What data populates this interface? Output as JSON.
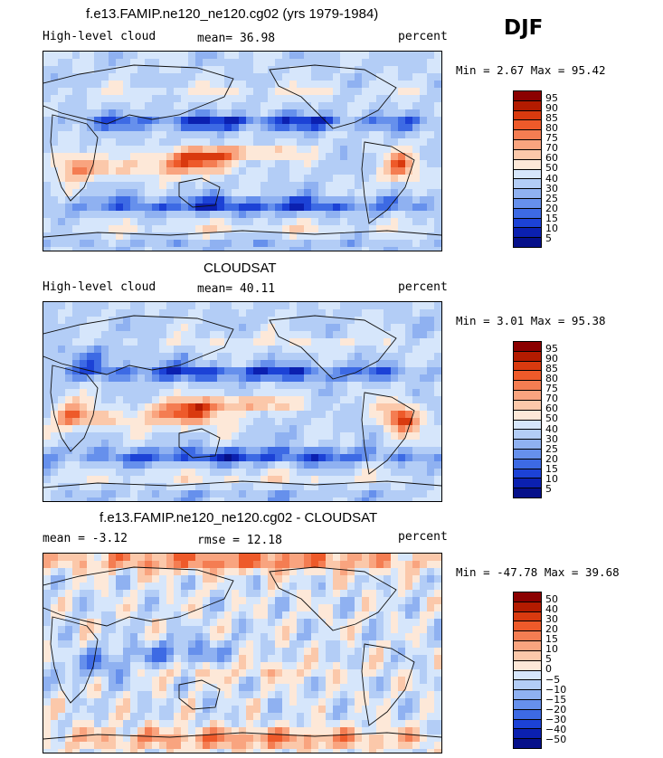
{
  "season": "DJF",
  "panels": [
    {
      "title": "f.e13.FAMIP.ne120_ne120.cg02 (yrs 1979-1984)",
      "left_label": "High-level cloud",
      "center_label": "mean=  36.98",
      "right_label": "percent",
      "minmax": "Min =   2.67 Max =  95.42",
      "mean": 36.98,
      "min": 2.67,
      "max": 95.42
    },
    {
      "title": "CLOUDSAT",
      "left_label": "High-level cloud",
      "center_label": "mean=  40.11",
      "right_label": "percent",
      "minmax": "Min =   3.01 Max =  95.38",
      "mean": 40.11,
      "min": 3.01,
      "max": 95.38
    },
    {
      "title": "f.e13.FAMIP.ne120_ne120.cg02 - CLOUDSAT",
      "left_label": "mean =  -3.12",
      "center_label": "rmse =  12.18",
      "right_label": "percent",
      "minmax": "Min = -47.78 Max =  39.68",
      "mean": -3.12,
      "rmse": 12.18,
      "min": -47.78,
      "max": 39.68
    }
  ],
  "colorbar_abs": {
    "labels": [
      "95",
      "90",
      "85",
      "80",
      "75",
      "70",
      "60",
      "50",
      "40",
      "30",
      "25",
      "20",
      "15",
      "10",
      "5"
    ],
    "colors": [
      "#8b0000",
      "#b31b00",
      "#d93a0f",
      "#ee5a2a",
      "#f47d52",
      "#f9a47f",
      "#fbc8aa",
      "#fde8d8",
      "#d6e6fb",
      "#b3cdf6",
      "#8fb1f1",
      "#6690ec",
      "#3d6ae4",
      "#1c42d6",
      "#0b20b0",
      "#06108a"
    ]
  },
  "colorbar_diff": {
    "labels": [
      "50",
      "40",
      "30",
      "20",
      "15",
      "10",
      "5",
      "0",
      "−5",
      "−10",
      "−15",
      "−20",
      "−30",
      "−40",
      "−50"
    ],
    "colors": [
      "#8b0000",
      "#b31b00",
      "#d93a0f",
      "#ee5a2a",
      "#f47d52",
      "#f9a47f",
      "#fbc8aa",
      "#fde8d8",
      "#d6e6fb",
      "#b3cdf6",
      "#8fb1f1",
      "#6690ec",
      "#3d6ae4",
      "#1c42d6",
      "#0b20b0",
      "#06108a"
    ]
  }
}
